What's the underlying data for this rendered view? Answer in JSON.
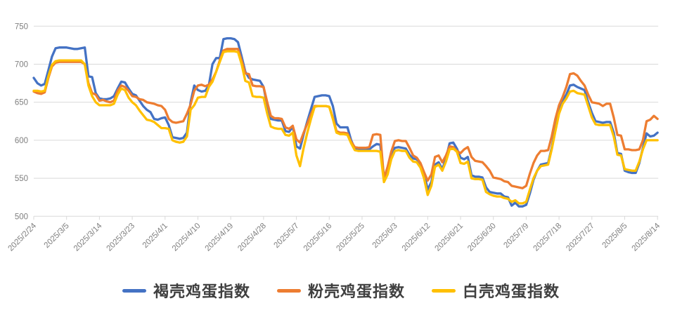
{
  "chart": {
    "background": "#ffffff",
    "grid_color": "#d9d9d9",
    "tick_color": "#d9d9d9",
    "axis_label_color": "#7f7f7f",
    "legend_text_color": "#3f3f3f"
  },
  "chart_data": {
    "type": "line",
    "title": "",
    "grid": "horizontal",
    "legend_position": "bottom",
    "x": {
      "start": "2025/2/24",
      "end": "2025/8/14",
      "frequency": "daily",
      "points": 172,
      "tick_labels": [
        "2025/2/24",
        "2025/3/5",
        "2025/3/14",
        "2025/3/23",
        "2025/4/1",
        "2025/4/10",
        "2025/4/19",
        "2025/4/28",
        "2025/5/7",
        "2025/5/16",
        "2025/5/25",
        "2025/6/3",
        "2025/6/12",
        "2025/6/21",
        "2025/6/30",
        "2025/7/9",
        "2025/7/18",
        "2025/7/27",
        "2025/8/5",
        "2025/8/14"
      ]
    },
    "y": {
      "min": 500,
      "max": 750,
      "step": 50,
      "tick_labels": [
        "500",
        "550",
        "600",
        "650",
        "700",
        "750"
      ]
    },
    "series": [
      {
        "name": "褐壳鸡蛋指数",
        "color": "#4472c4",
        "values": [
          682,
          675,
          672,
          674,
          692,
          710,
          721,
          722,
          722,
          722,
          721,
          720,
          720,
          721,
          722,
          684,
          683,
          662,
          655,
          654,
          654,
          655,
          658,
          668,
          677,
          676,
          668,
          661,
          659,
          652,
          645,
          640,
          637,
          628,
          627,
          629,
          630,
          620,
          604,
          603,
          602,
          603,
          610,
          650,
          672,
          666,
          664,
          665,
          672,
          700,
          708,
          708,
          733,
          734,
          734,
          733,
          729,
          710,
          690,
          682,
          680,
          679,
          678,
          670,
          645,
          628,
          627,
          626,
          626,
          612,
          611,
          618,
          592,
          589,
          608,
          625,
          641,
          657,
          658,
          659,
          659,
          658,
          645,
          622,
          617,
          617,
          617,
          600,
          589,
          588,
          588,
          588,
          588,
          592,
          595,
          594,
          552,
          560,
          580,
          590,
          591,
          590,
          589,
          581,
          576,
          575,
          568,
          557,
          535,
          545,
          568,
          571,
          562,
          576,
          596,
          597,
          589,
          577,
          575,
          578,
          554,
          552,
          552,
          551,
          538,
          532,
          531,
          530,
          530,
          526,
          525,
          514,
          518,
          513,
          513,
          515,
          530,
          548,
          560,
          568,
          569,
          570,
          590,
          615,
          638,
          652,
          660,
          672,
          673,
          670,
          668,
          666,
          650,
          636,
          625,
          624,
          623,
          624,
          624,
          610,
          583,
          582,
          560,
          558,
          557,
          557,
          570,
          590,
          609,
          605,
          606,
          610
        ]
      },
      {
        "name": "粉壳鸡蛋指数",
        "color": "#ed7d31",
        "values": [
          664,
          662,
          661,
          663,
          682,
          697,
          702,
          703,
          703,
          703,
          703,
          703,
          703,
          703,
          700,
          675,
          662,
          660,
          652,
          653,
          651,
          650,
          652,
          665,
          672,
          670,
          665,
          658,
          657,
          654,
          653,
          650,
          649,
          648,
          646,
          645,
          640,
          628,
          624,
          623,
          624,
          625,
          635,
          647,
          665,
          672,
          673,
          671,
          673,
          680,
          690,
          705,
          718,
          720,
          720,
          720,
          720,
          705,
          688,
          687,
          672,
          671,
          671,
          670,
          650,
          632,
          629,
          629,
          628,
          617,
          615,
          619,
          601,
          597,
          610,
          622,
          634,
          645,
          645,
          645,
          645,
          644,
          630,
          612,
          610,
          610,
          609,
          598,
          591,
          590,
          590,
          590,
          591,
          607,
          608,
          607,
          550,
          565,
          585,
          599,
          600,
          599,
          599,
          590,
          580,
          577,
          570,
          558,
          547,
          555,
          578,
          580,
          571,
          580,
          592,
          591,
          586,
          583,
          588,
          591,
          578,
          573,
          572,
          571,
          566,
          560,
          551,
          550,
          549,
          546,
          545,
          540,
          539,
          538,
          537,
          540,
          556,
          570,
          580,
          586,
          586,
          587,
          605,
          628,
          646,
          657,
          670,
          687,
          688,
          685,
          678,
          672,
          660,
          650,
          649,
          648,
          645,
          648,
          648,
          630,
          607,
          606,
          588,
          588,
          587,
          587,
          588,
          600,
          625,
          627,
          632,
          628
        ]
      },
      {
        "name": "白壳鸡蛋指数",
        "color": "#ffc000",
        "values": [
          665,
          665,
          664,
          665,
          684,
          699,
          704,
          705,
          705,
          705,
          705,
          705,
          705,
          705,
          700,
          672,
          658,
          650,
          646,
          646,
          646,
          646,
          648,
          660,
          668,
          666,
          656,
          650,
          646,
          639,
          633,
          627,
          626,
          624,
          620,
          616,
          616,
          615,
          600,
          598,
          597,
          598,
          605,
          640,
          646,
          656,
          657,
          657,
          670,
          677,
          690,
          703,
          716,
          717,
          717,
          717,
          716,
          700,
          678,
          676,
          658,
          657,
          657,
          656,
          635,
          618,
          616,
          615,
          615,
          607,
          606,
          610,
          580,
          566,
          590,
          610,
          628,
          644,
          645,
          645,
          645,
          644,
          628,
          610,
          608,
          608,
          607,
          596,
          587,
          586,
          586,
          586,
          586,
          586,
          586,
          585,
          545,
          555,
          575,
          586,
          587,
          586,
          586,
          577,
          572,
          571,
          564,
          550,
          528,
          540,
          565,
          568,
          560,
          572,
          588,
          589,
          585,
          570,
          569,
          572,
          550,
          549,
          549,
          548,
          532,
          529,
          527,
          526,
          526,
          524,
          523,
          519,
          521,
          517,
          517,
          519,
          535,
          550,
          560,
          566,
          567,
          568,
          588,
          612,
          635,
          648,
          655,
          664,
          665,
          662,
          661,
          660,
          645,
          630,
          621,
          620,
          620,
          620,
          620,
          605,
          581,
          580,
          562,
          561,
          560,
          560,
          572,
          588,
          600,
          600,
          600,
          600
        ]
      }
    ]
  }
}
